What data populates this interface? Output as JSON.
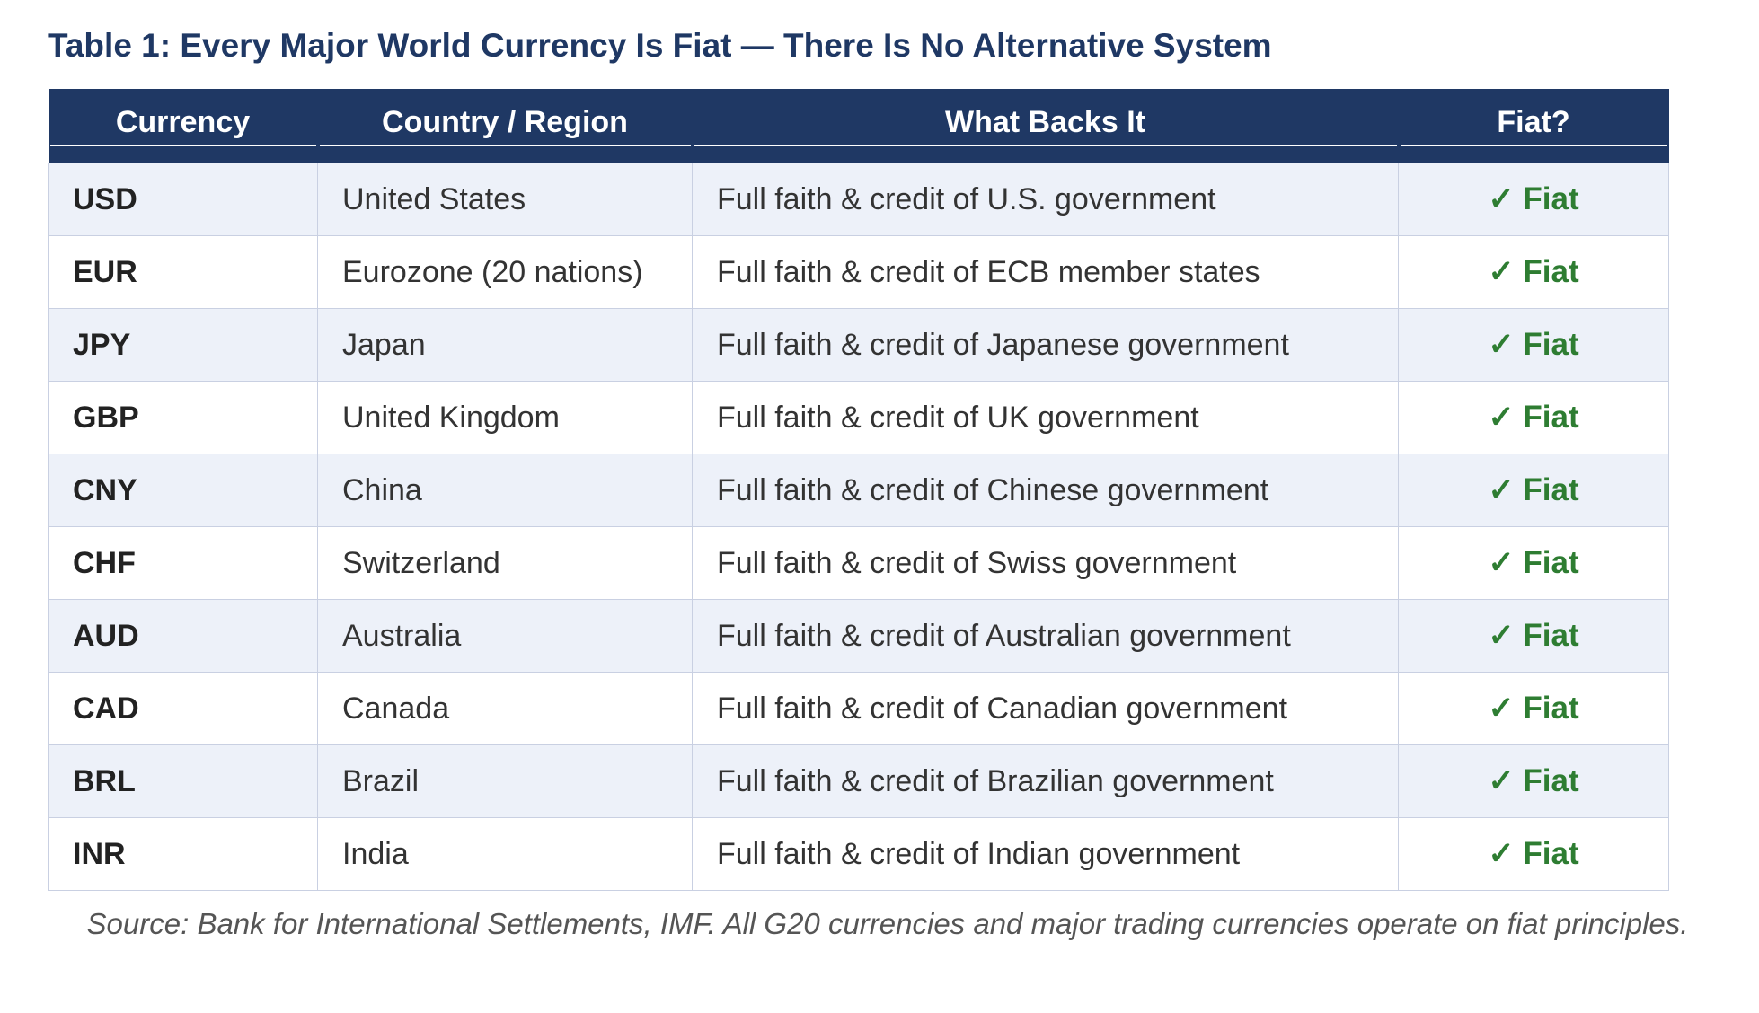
{
  "header": {
    "title": "Table 1: Every Major World Currency Is Fiat — There Is No Alternative System"
  },
  "table": {
    "columns": [
      "Currency",
      "Country / Region",
      "What Backs It",
      "Fiat?"
    ],
    "rows": [
      [
        "USD",
        "United States",
        "Full faith & credit of U.S. government",
        "✓ Fiat"
      ],
      [
        "EUR",
        "Eurozone (20 nations)",
        "Full faith & credit of ECB member states",
        "✓ Fiat"
      ],
      [
        "JPY",
        "Japan",
        "Full faith & credit of Japanese government",
        "✓ Fiat"
      ],
      [
        "GBP",
        "United Kingdom",
        "Full faith & credit of UK government",
        "✓ Fiat"
      ],
      [
        "CNY",
        "China",
        "Full faith & credit of Chinese government",
        "✓ Fiat"
      ],
      [
        "CHF",
        "Switzerland",
        "Full faith & credit of Swiss government",
        "✓ Fiat"
      ],
      [
        "AUD",
        "Australia",
        "Full faith & credit of Australian government",
        "✓ Fiat"
      ],
      [
        "CAD",
        "Canada",
        "Full faith & credit of Canadian government",
        "✓ Fiat"
      ],
      [
        "BRL",
        "Brazil",
        "Full faith & credit of Brazilian government",
        "✓ Fiat"
      ],
      [
        "INR",
        "India",
        "Full faith & credit of Indian government",
        "✓ Fiat"
      ]
    ]
  },
  "footer": {
    "note": "Source: Bank for International Settlements, IMF. All G20 currencies and major trading currencies operate on fiat principles."
  }
}
